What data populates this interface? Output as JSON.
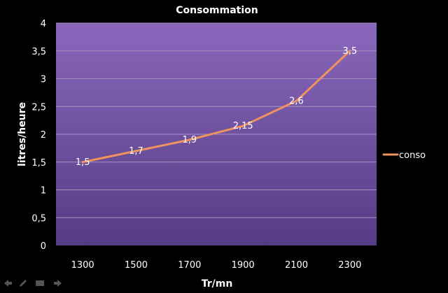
{
  "chart_data": {
    "type": "line",
    "title": "Consommation",
    "xlabel": "Tr/mn",
    "ylabel": "litres/heure",
    "categories": [
      "1300",
      "1500",
      "1700",
      "1900",
      "2100",
      "2300"
    ],
    "series": [
      {
        "name": "conso",
        "values": [
          1.5,
          1.7,
          1.9,
          2.15,
          2.6,
          3.5
        ],
        "labels": [
          "1,5",
          "1,7",
          "1,9",
          "2,15",
          "2,6",
          "3,5"
        ],
        "color": "#f0935e"
      }
    ],
    "yticks": [
      "0",
      "0,5",
      "1",
      "1,5",
      "2",
      "2,5",
      "3",
      "3,5",
      "4"
    ],
    "ylim": [
      0,
      4
    ],
    "grid": true,
    "legend_position": "right",
    "colors": {
      "plot_gradient_top": "#8a67bb",
      "plot_gradient_bottom": "#553c84",
      "background": "#000000"
    }
  },
  "toolbar": {
    "icons": [
      "arrow-left-icon",
      "pen-icon",
      "slide-menu-icon",
      "arrow-right-icon"
    ]
  }
}
